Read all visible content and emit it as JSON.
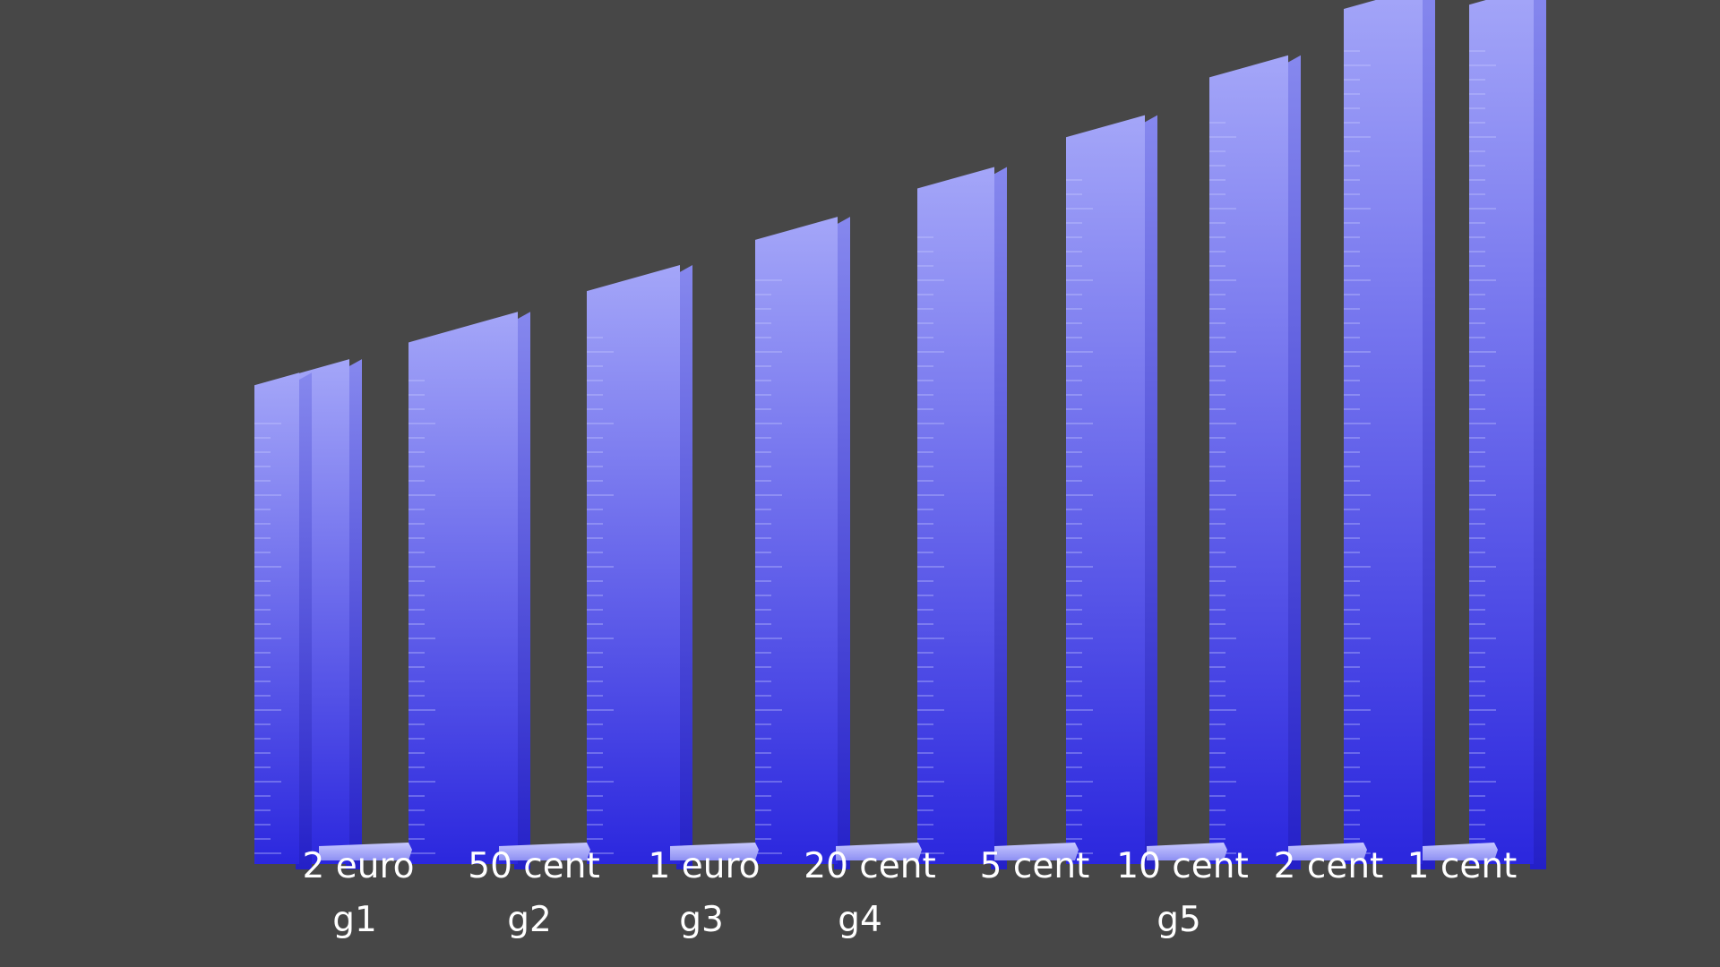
{
  "chart_data": {
    "type": "bar",
    "style": "3d-stacked-coins",
    "colors": {
      "background": "#474747",
      "bar_top": "#a4a6f8",
      "bar_bottom": "#2b27de",
      "tick": "#c9cbff"
    },
    "categories": [
      "2 euro",
      "50 cent",
      "1 euro",
      "20 cent",
      "5 cent",
      "10 cent",
      "2 cent",
      "1 cent"
    ],
    "group_labels": [
      "g1",
      "g2",
      "g3",
      "g4",
      "g5"
    ],
    "values": [
      56,
      61,
      67,
      73,
      79,
      85,
      92,
      100
    ],
    "ylim": [
      0,
      100
    ],
    "grid": false,
    "legend": "none"
  }
}
